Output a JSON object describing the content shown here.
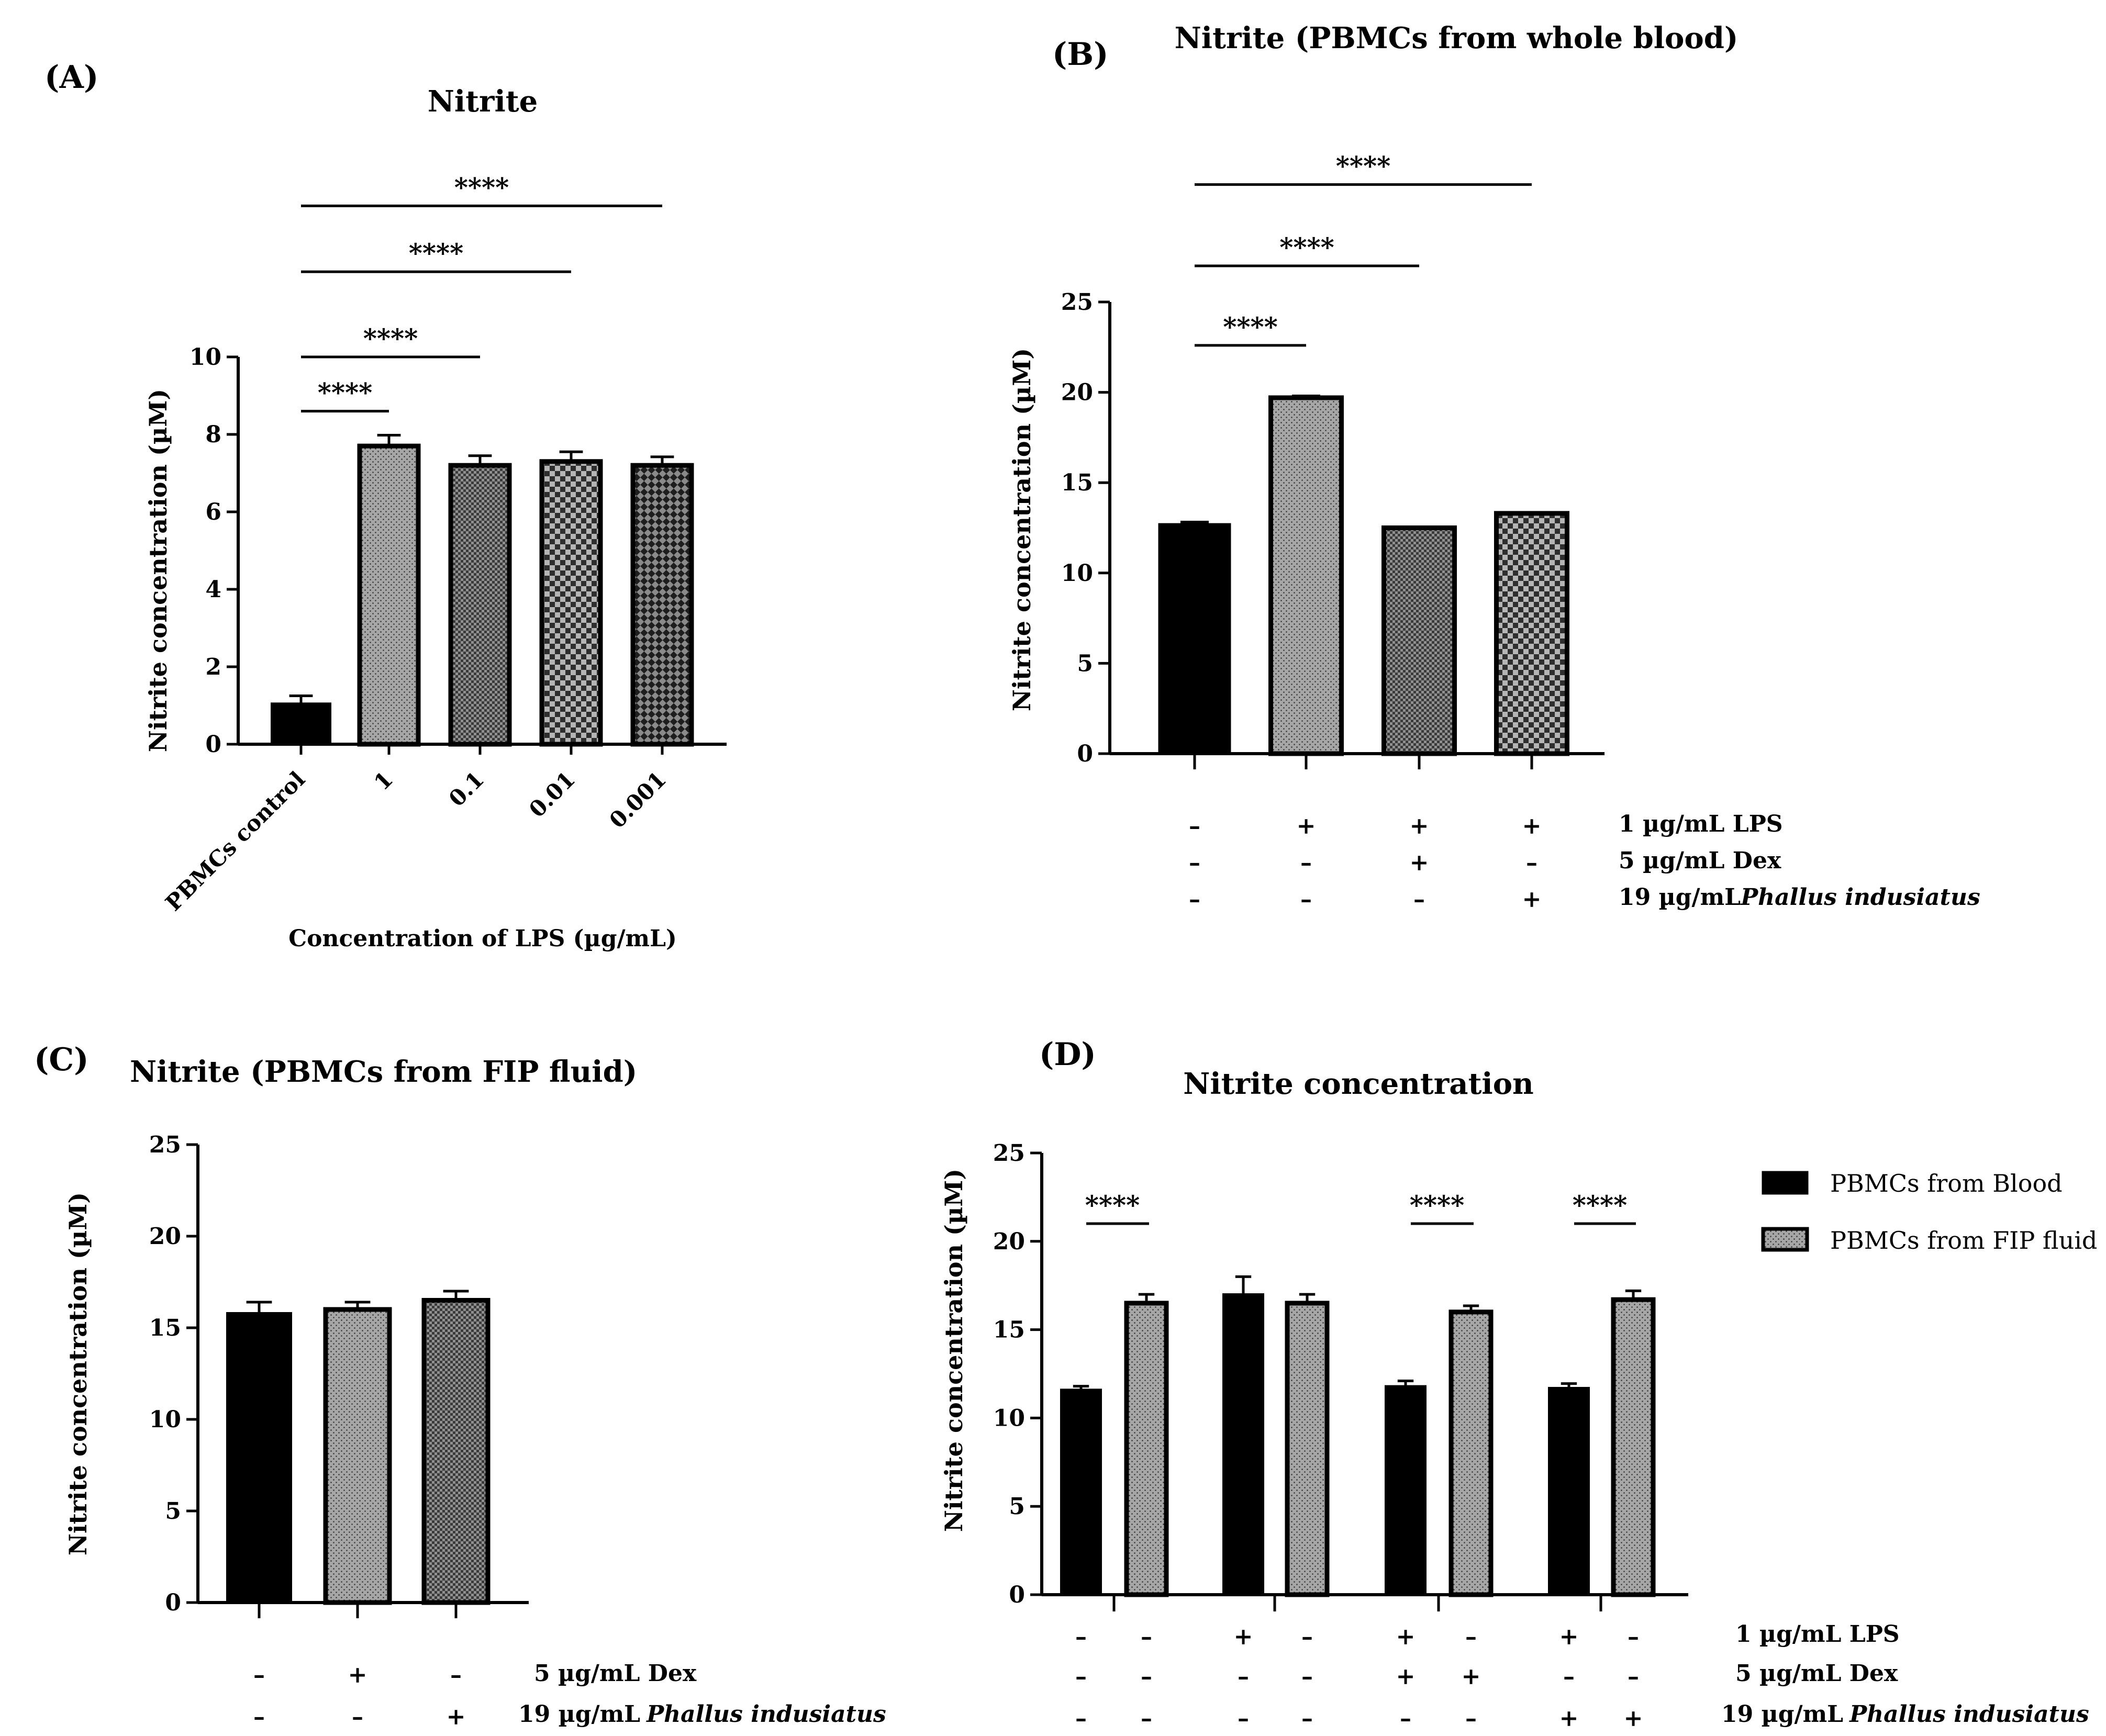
{
  "chart_data": [
    {
      "panel": "(A)",
      "type": "bar",
      "title": "Nitrite",
      "ylabel": "Nitrite concentration (µM)",
      "xlabel": "Concentration of LPS (µg/mL)",
      "ylim": [
        0,
        10
      ],
      "yticks": [
        "0",
        "2",
        "4",
        "6",
        "8",
        "10"
      ],
      "categories": [
        "PBMCs control",
        "1",
        "0.1",
        "0.01",
        "0.001"
      ],
      "values": [
        1.05,
        7.7,
        7.2,
        7.3,
        7.2
      ],
      "errors": [
        0.2,
        0.28,
        0.25,
        0.25,
        0.22
      ],
      "fills": [
        "black",
        "light-dots",
        "dark-check",
        "check",
        "diag-check"
      ],
      "significance": [
        {
          "from": 0,
          "to": 1,
          "y": 8.6,
          "label": "****"
        },
        {
          "from": 0,
          "to": 2,
          "y": 10.0,
          "label": "****"
        },
        {
          "from": 0,
          "to": 3,
          "y": 12.2,
          "label": "****"
        },
        {
          "from": 0,
          "to": 4,
          "y": 13.9,
          "label": "****"
        }
      ]
    },
    {
      "panel": "(B)",
      "type": "bar",
      "title": "Nitrite (PBMCs from whole blood)",
      "ylabel": "Nitrite concentration (µM)",
      "ylim": [
        0,
        25
      ],
      "yticks": [
        "0",
        "5",
        "10",
        "15",
        "20",
        "25"
      ],
      "values": [
        12.7,
        19.7,
        12.5,
        13.3
      ],
      "errors": [
        0.12,
        0.1,
        0.05,
        0.05
      ],
      "fills": [
        "black",
        "light-dots",
        "dark-check",
        "check"
      ],
      "treatment_rows": [
        {
          "label": "1 µg/mL LPS",
          "signs": [
            "–",
            "+",
            "+",
            "+"
          ]
        },
        {
          "label": "5 µg/mL Dex",
          "signs": [
            "–",
            "–",
            "+",
            "–"
          ]
        },
        {
          "label": "19 µg/mL",
          "label_italic": "Phallus indusiatus",
          "signs": [
            "–",
            "–",
            "–",
            "+"
          ]
        }
      ],
      "significance": [
        {
          "from": 0,
          "to": 1,
          "y": 22.6,
          "label": "****"
        },
        {
          "from": 0,
          "to": 2,
          "y": 27.0,
          "label": "****"
        },
        {
          "from": 0,
          "to": 3,
          "y": 31.5,
          "label": "****"
        }
      ]
    },
    {
      "panel": "(C)",
      "type": "bar",
      "title": "Nitrite (PBMCs from FIP fluid)",
      "ylabel": "Nitrite concentration (µM)",
      "ylim": [
        0,
        25
      ],
      "yticks": [
        "0",
        "5",
        "10",
        "15",
        "20",
        "25"
      ],
      "values": [
        15.8,
        16.0,
        16.5
      ],
      "errors": [
        0.6,
        0.4,
        0.5
      ],
      "fills": [
        "black",
        "light-dots",
        "dark-check"
      ],
      "treatment_rows": [
        {
          "label": "5 µg/mL Dex",
          "signs": [
            "–",
            "+",
            "–"
          ]
        },
        {
          "label": "19 µg/mL",
          "label_italic": "Phallus  indusiatus",
          "signs": [
            "–",
            "–",
            "+"
          ]
        }
      ]
    },
    {
      "panel": "(D)",
      "type": "bar",
      "title": "Nitrite concentration",
      "ylabel": "Nitrite concentration (µM)",
      "ylim": [
        0,
        25
      ],
      "yticks": [
        "0",
        "5",
        "10",
        "15",
        "20",
        "25"
      ],
      "groups": 4,
      "series": [
        {
          "name": "PBMCs from Blood",
          "fill": "black",
          "values": [
            11.6,
            17.0,
            11.8,
            11.7
          ],
          "errors": [
            0.2,
            1.0,
            0.3,
            0.25
          ]
        },
        {
          "name": "PBMCs from FIP fluid",
          "fill": "light-dots",
          "values": [
            16.5,
            16.5,
            16.0,
            16.7
          ],
          "errors": [
            0.5,
            0.5,
            0.35,
            0.5
          ]
        }
      ],
      "treatment_rows": [
        {
          "label": "1 µg/mL  LPS",
          "signs": [
            "–",
            "–",
            "+",
            "–",
            "+",
            "–",
            "+",
            "–"
          ]
        },
        {
          "label": "5  µg/mL  Dex",
          "signs": [
            "–",
            "–",
            "–",
            "–",
            "+",
            "+",
            "–",
            "–"
          ]
        },
        {
          "label": "19 µg/mL",
          "label_italic": "Phallus indusiatus",
          "signs": [
            "–",
            "–",
            "–",
            "–",
            "–",
            "–",
            "+",
            "+"
          ]
        }
      ],
      "significance": [
        {
          "group": 0,
          "y": 21.0,
          "label": "****"
        },
        {
          "group": 2,
          "y": 21.0,
          "label": "****"
        },
        {
          "group": 3,
          "y": 21.0,
          "label": "****"
        }
      ],
      "legend_position": "right"
    }
  ]
}
